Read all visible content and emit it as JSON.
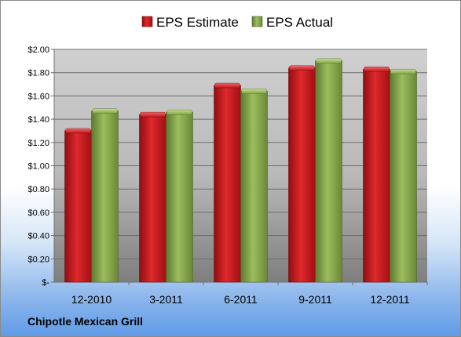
{
  "company": "Chipotle Mexican Grill",
  "colors": {
    "estimate": "#c8191d",
    "actual": "#86a84a"
  },
  "chart_data": {
    "type": "bar",
    "categories": [
      "12-2010",
      "3-2011",
      "6-2011",
      "9-2011",
      "12-2011"
    ],
    "series": [
      {
        "name": "EPS Estimate",
        "values": [
          1.3,
          1.44,
          1.69,
          1.84,
          1.83
        ]
      },
      {
        "name": "EPS Actual",
        "values": [
          1.47,
          1.46,
          1.64,
          1.9,
          1.81
        ]
      }
    ],
    "y_ticks": [
      "$-",
      "$0.20",
      "$0.40",
      "$0.60",
      "$0.80",
      "$1.00",
      "$1.20",
      "$1.40",
      "$1.60",
      "$1.80",
      "$2.00"
    ],
    "ylim": [
      0,
      2.0
    ],
    "grid": true,
    "legend": "top"
  }
}
